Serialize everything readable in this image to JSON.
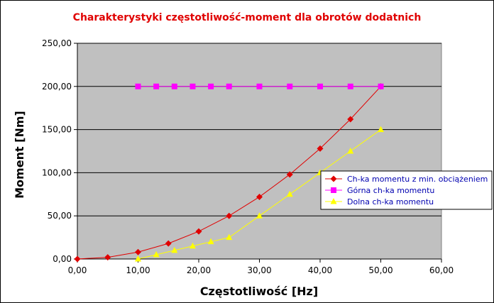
{
  "chart_data": {
    "type": "line",
    "title": "Charakterystyki częstotliwość-moment dla obrotów dodatnich",
    "xlabel": "Częstotliwość [Hz]",
    "ylabel": "Moment [Nm]",
    "xlim": [
      0,
      60
    ],
    "ylim": [
      0,
      250
    ],
    "x_ticks": [
      0,
      10,
      20,
      30,
      40,
      50,
      60
    ],
    "y_ticks": [
      0,
      50,
      100,
      150,
      200,
      250
    ],
    "x_tick_labels": [
      "0,00",
      "10,00",
      "20,00",
      "30,00",
      "40,00",
      "50,00",
      "60,00"
    ],
    "y_tick_labels": [
      "0,00",
      "50,00",
      "100,00",
      "150,00",
      "200,00",
      "250,00"
    ],
    "grid": "horizontal",
    "plot_background": "#c0c0c0",
    "legend_position": "right",
    "series": [
      {
        "name": "Ch-ka momentu z min. obciążeniem",
        "color": "#e00000",
        "marker": "diamond",
        "x": [
          0,
          5,
          10,
          15,
          20,
          25,
          30,
          35,
          40,
          45,
          50
        ],
        "y": [
          0,
          2,
          8,
          18,
          32,
          50,
          72,
          98,
          128,
          162,
          200
        ]
      },
      {
        "name": "Górna ch-ka momentu",
        "color": "#ff00ff",
        "marker": "square",
        "x": [
          10,
          13,
          16,
          19,
          22,
          25,
          30,
          35,
          40,
          45,
          50
        ],
        "y": [
          200,
          200,
          200,
          200,
          200,
          200,
          200,
          200,
          200,
          200,
          200
        ]
      },
      {
        "name": "Dolna ch-ka momentu",
        "color": "#ffff00",
        "marker": "triangle",
        "x": [
          10,
          13,
          16,
          19,
          22,
          25,
          30,
          35,
          40,
          45,
          50
        ],
        "y": [
          0,
          5,
          10,
          15,
          20,
          25,
          50,
          75,
          100,
          125,
          150
        ]
      }
    ]
  }
}
